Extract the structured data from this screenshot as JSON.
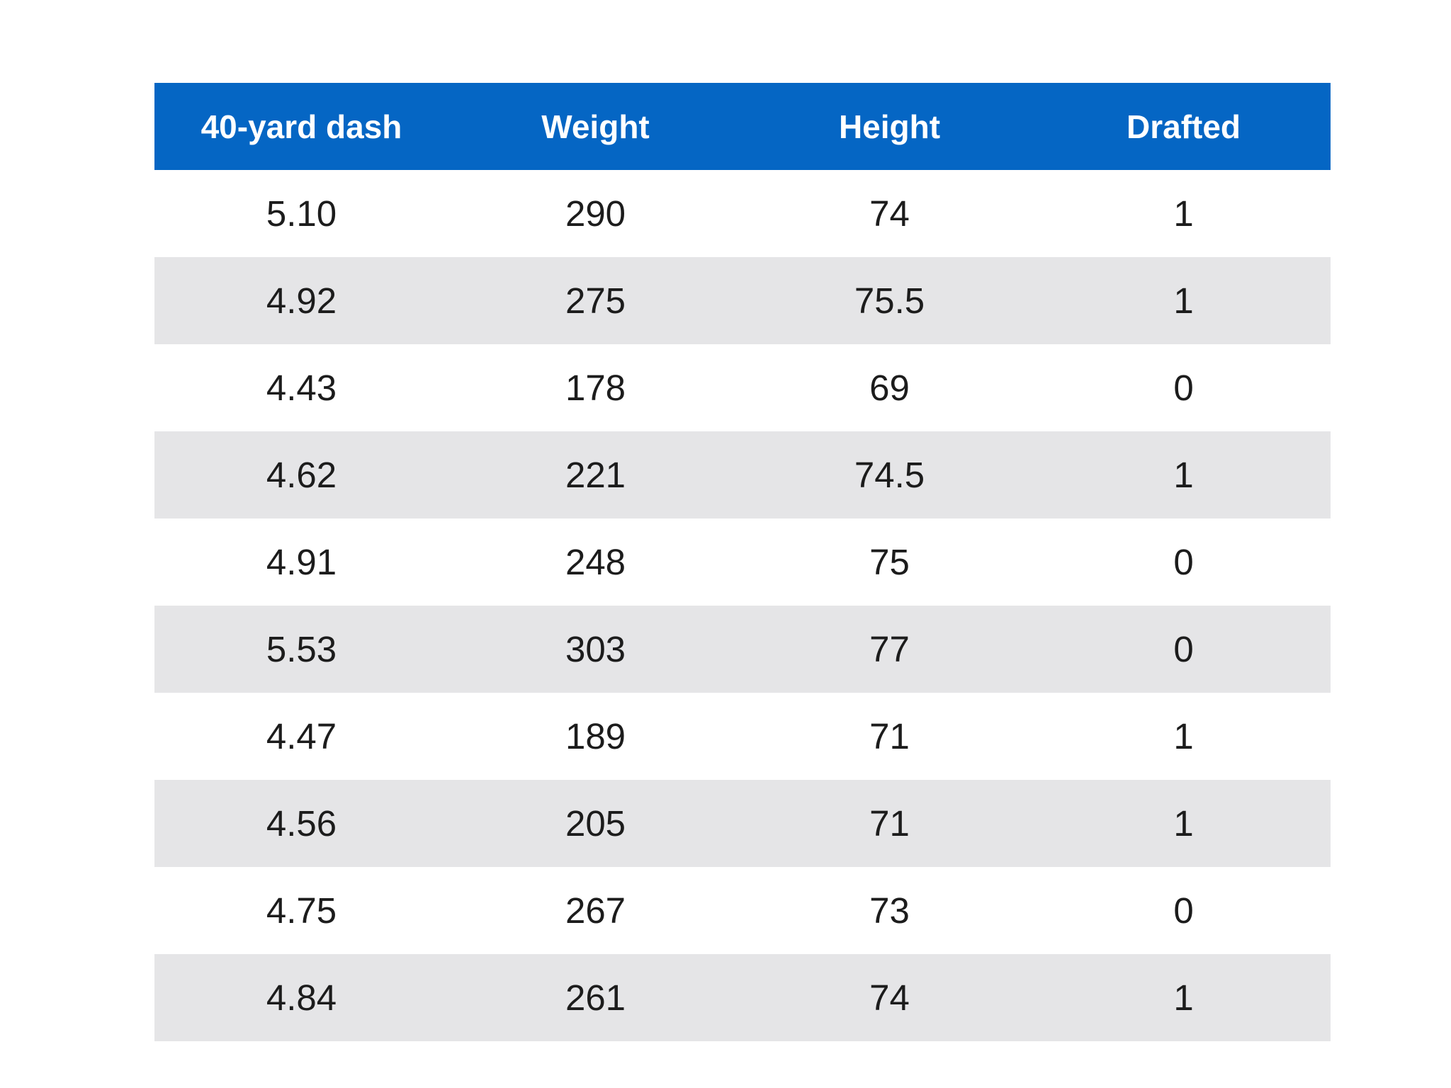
{
  "table": {
    "headers": [
      "40-yard dash",
      "Weight",
      "Height",
      "Drafted"
    ],
    "rows": [
      [
        "5.10",
        "290",
        "74",
        "1"
      ],
      [
        "4.92",
        "275",
        "75.5",
        "1"
      ],
      [
        "4.43",
        "178",
        "69",
        "0"
      ],
      [
        "4.62",
        "221",
        "74.5",
        "1"
      ],
      [
        "4.91",
        "248",
        "75",
        "0"
      ],
      [
        "5.53",
        "303",
        "77",
        "0"
      ],
      [
        "4.47",
        "189",
        "71",
        "1"
      ],
      [
        "4.56",
        "205",
        "71",
        "1"
      ],
      [
        "4.75",
        "267",
        "73",
        "0"
      ],
      [
        "4.84",
        "261",
        "74",
        "1"
      ]
    ]
  },
  "colors": {
    "header_background": "#0566c4",
    "header_text": "#ffffff",
    "stripe_background": "#e5e5e7",
    "cell_text": "#1c1c1c"
  }
}
